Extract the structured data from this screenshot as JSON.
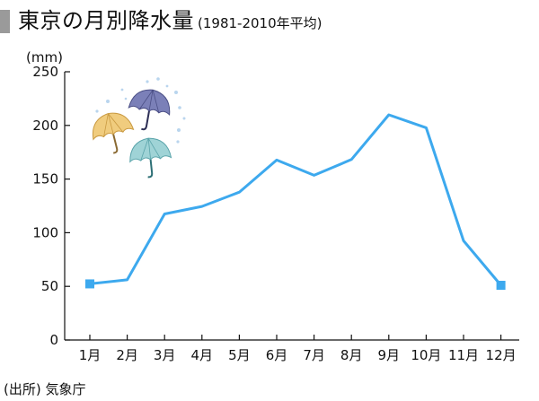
{
  "header": {
    "title": "東京の月別降水量",
    "subtitle": "(1981-2010年平均)"
  },
  "source": "(出所) 気象庁",
  "colors": {
    "line": "#3da9ee",
    "axis": "#111111",
    "title_bar": "#9a9a9a"
  },
  "decoration": {
    "icon": "umbrellas-rain-icon"
  },
  "chart_data": {
    "type": "line",
    "title": "東京の月別降水量",
    "subtitle": "(1981-2010年平均)",
    "ylabel": "(mm)",
    "xlabel": "",
    "categories": [
      "1月",
      "2月",
      "3月",
      "4月",
      "5月",
      "6月",
      "7月",
      "8月",
      "9月",
      "10月",
      "11月",
      "12月"
    ],
    "values": [
      52.3,
      56.1,
      117.5,
      124.5,
      137.8,
      167.7,
      153.5,
      168.2,
      209.9,
      197.8,
      92.5,
      51.0
    ],
    "ylim": [
      0,
      250
    ],
    "yticks": [
      0,
      50,
      100,
      150,
      200,
      250
    ],
    "grid": false,
    "legend": "none",
    "square_markers_on": [
      "1月",
      "12月"
    ]
  }
}
